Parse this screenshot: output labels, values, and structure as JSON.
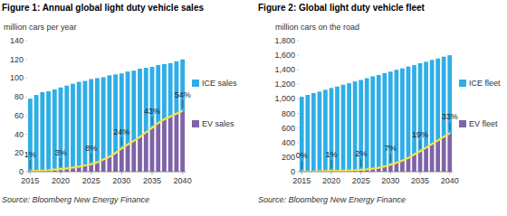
{
  "chart_data": [
    {
      "type": "bar",
      "title": "Figure 1: Annual global light duty vehicle sales",
      "ylabel": "million cars per year",
      "source": "Source: Bloomberg New Energy Finance",
      "x": [
        2015,
        2016,
        2017,
        2018,
        2019,
        2020,
        2021,
        2022,
        2023,
        2024,
        2025,
        2026,
        2027,
        2028,
        2029,
        2030,
        2031,
        2032,
        2033,
        2034,
        2035,
        2036,
        2037,
        2038,
        2039,
        2040
      ],
      "series": [
        {
          "name": "EV sales",
          "color": "#7f63a8",
          "values": [
            0.5,
            0.8,
            1.2,
            1.6,
            2.2,
            2.8,
            3.5,
            4.5,
            5.5,
            6.8,
            8,
            10,
            13,
            16,
            20,
            25,
            29,
            33,
            37,
            42,
            47,
            52,
            56,
            59,
            62,
            65
          ]
        },
        {
          "name": "ICE sales",
          "color": "#2eaee6",
          "values": [
            77.5,
            81.2,
            83.8,
            84.4,
            85.8,
            87.2,
            88.5,
            89.5,
            90.5,
            90.2,
            91,
            90,
            88,
            87,
            84,
            80,
            78,
            75,
            73,
            69,
            65,
            62,
            59,
            57,
            56,
            55
          ]
        }
      ],
      "stacked": true,
      "legend": "right",
      "grid": false,
      "xlim": [
        2014.5,
        2040.5
      ],
      "xticks": [
        2015,
        2020,
        2025,
        2030,
        2035,
        2040
      ],
      "ylim": [
        0,
        140
      ],
      "yticks": [
        0,
        20,
        40,
        60,
        80,
        100,
        120,
        140
      ],
      "annotations": [
        {
          "x": 2015,
          "text": "1%"
        },
        {
          "x": 2020,
          "text": "3%"
        },
        {
          "x": 2025,
          "text": "8%"
        },
        {
          "x": 2030,
          "text": "24%"
        },
        {
          "x": 2035,
          "text": "43%"
        },
        {
          "x": 2040,
          "text": "54%"
        }
      ]
    },
    {
      "type": "bar",
      "title": "Figure 2: Global light duty vehicle fleet",
      "ylabel": "million cars on the road",
      "source": "Source: Bloomberg New Energy Finance",
      "x": [
        2015,
        2016,
        2017,
        2018,
        2019,
        2020,
        2021,
        2022,
        2023,
        2024,
        2025,
        2026,
        2027,
        2028,
        2029,
        2030,
        2031,
        2032,
        2033,
        2034,
        2035,
        2036,
        2037,
        2038,
        2039,
        2040
      ],
      "series": [
        {
          "name": "EV fleet",
          "color": "#7f63a8",
          "values": [
            1,
            2,
            3,
            5,
            7,
            10,
            12,
            15,
            18,
            21,
            26,
            33,
            42,
            55,
            72,
            96,
            122,
            152,
            190,
            235,
            283,
            330,
            380,
            430,
            480,
            528
          ]
        },
        {
          "name": "ICE fleet",
          "color": "#2eaee6",
          "values": [
            1029,
            1053,
            1077,
            1095,
            1118,
            1140,
            1158,
            1180,
            1197,
            1219,
            1234,
            1252,
            1268,
            1275,
            1283,
            1279,
            1278,
            1268,
            1255,
            1230,
            1207,
            1180,
            1155,
            1125,
            1100,
            1072
          ]
        }
      ],
      "stacked": true,
      "legend": "right",
      "grid": false,
      "xlim": [
        2014.5,
        2040.5
      ],
      "xticks": [
        2015,
        2020,
        2025,
        2030,
        2035,
        2040
      ],
      "ylim": [
        0,
        1800
      ],
      "yticks": [
        0,
        200,
        400,
        600,
        800,
        {
          "value": 1000,
          "label": "1,000"
        },
        {
          "value": 1200,
          "label": "1,200"
        },
        {
          "value": 1400,
          "label": "1,400"
        },
        {
          "value": 1600,
          "label": "1,600"
        },
        {
          "value": 1800,
          "label": "1,800"
        }
      ],
      "annotations": [
        {
          "x": 2015,
          "text": "0%"
        },
        {
          "x": 2020,
          "text": "1%"
        },
        {
          "x": 2025,
          "text": "2%"
        },
        {
          "x": 2030,
          "text": "7%"
        },
        {
          "x": 2035,
          "text": "19%"
        },
        {
          "x": 2040,
          "text": "33%"
        }
      ]
    }
  ]
}
